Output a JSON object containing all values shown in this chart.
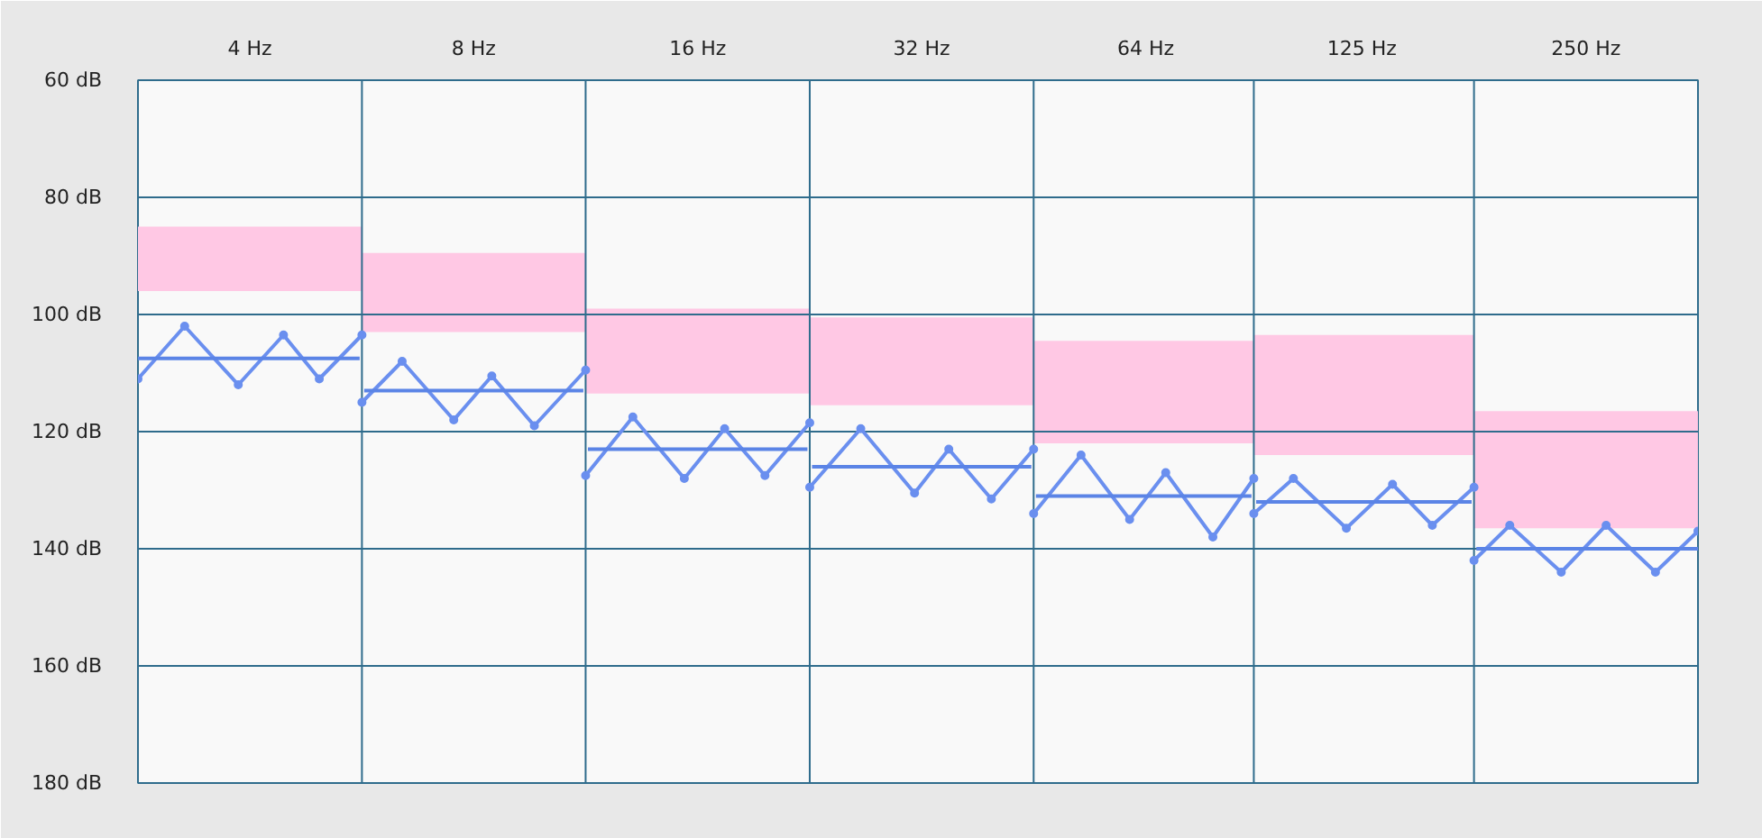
{
  "chart_data": {
    "type": "bar",
    "log": "x",
    "xlim": [
      2.83,
      353.6
    ],
    "xticks": [
      {
        "value": 4,
        "label": "4 Hz"
      },
      {
        "value": 8,
        "label": "8 Hz"
      },
      {
        "value": 16,
        "label": "16 Hz"
      },
      {
        "value": 32,
        "label": "32 Hz"
      },
      {
        "value": 64,
        "label": "64 Hz"
      },
      {
        "value": 125,
        "label": "125 Hz"
      },
      {
        "value": 250,
        "label": "250 Hz"
      }
    ],
    "ylim": [
      180,
      60
    ],
    "yticks": [
      {
        "value": 60,
        "label": "60 dB"
      },
      {
        "value": 80,
        "label": "80 dB"
      },
      {
        "value": 100,
        "label": "100 dB"
      },
      {
        "value": 120,
        "label": "120 dB"
      },
      {
        "value": 140,
        "label": "140 dB"
      },
      {
        "value": 160,
        "label": "160 dB"
      },
      {
        "value": 180,
        "label": "180 dB"
      }
    ],
    "grid": "y",
    "ref_lines": [
      {
        "axis": "x",
        "value": 5.66,
        "color": "#2f6c8c"
      },
      {
        "axis": "x",
        "value": 11.31,
        "color": "#2f6c8c"
      },
      {
        "axis": "x",
        "value": 22.63,
        "color": "#2f6c8c"
      },
      {
        "axis": "x",
        "value": 45.25,
        "color": "#2f6c8c"
      },
      {
        "axis": "x",
        "value": 89.44,
        "color": "#2f6c8c"
      },
      {
        "axis": "x",
        "value": 176.8,
        "color": "#2f6c8c"
      }
    ],
    "series": [
      {
        "color": "#ffc8e4",
        "x": [
          4,
          8,
          16,
          32,
          64,
          125,
          250
        ],
        "base": [
          85,
          89.5,
          99,
          100.5,
          104.5,
          103.5,
          116.5
        ],
        "values": [
          11,
          13.5,
          14.5,
          15,
          17.5,
          20.5,
          20
        ]
      },
      {
        "type": "line",
        "color": "#6a8fef",
        "marker": "circle",
        "x": [
          2.83,
          3.27,
          3.86,
          4.44,
          4.96,
          5.66,
          null,
          5.66,
          6.41,
          7.52,
          8.46,
          9.65,
          11.31,
          null,
          11.31,
          13.09,
          15.35,
          17.39,
          19.7,
          22.63,
          null,
          22.63,
          26.5,
          31.3,
          34.8,
          39.7,
          45.25,
          null,
          45.25,
          52.4,
          60.9,
          68.1,
          78.8,
          89.44,
          null,
          89.44,
          101.1,
          119.1,
          137.4,
          155.4,
          176.8,
          null,
          176.8,
          197.5,
          231.6,
          266.1,
          310,
          353.6
        ],
        "values": [
          111,
          102,
          112,
          103.5,
          111,
          103.5,
          null,
          115,
          108,
          118,
          110.5,
          119,
          109.5,
          null,
          127.5,
          117.5,
          128,
          119.5,
          127.5,
          118.5,
          null,
          129.5,
          119.5,
          130.5,
          123,
          131.5,
          123,
          null,
          134,
          124,
          135,
          127,
          138,
          128,
          null,
          134,
          128,
          136.5,
          129,
          136,
          129.5,
          null,
          142,
          136,
          144,
          136,
          144,
          137
        ]
      },
      {
        "type": "line",
        "color": "#5b84e6",
        "x": [
          2.83,
          5.62,
          null,
          5.7,
          11.23,
          null,
          11.39,
          22.47,
          null,
          22.79,
          44.93,
          null,
          45.57,
          88.8,
          null,
          90.1,
          175.5,
          null,
          178.1,
          353.6
        ],
        "values": [
          107.5,
          107.5,
          null,
          113,
          113,
          null,
          123,
          123,
          null,
          126,
          126,
          null,
          131,
          131,
          null,
          132,
          132,
          null,
          140,
          140
        ]
      }
    ]
  }
}
